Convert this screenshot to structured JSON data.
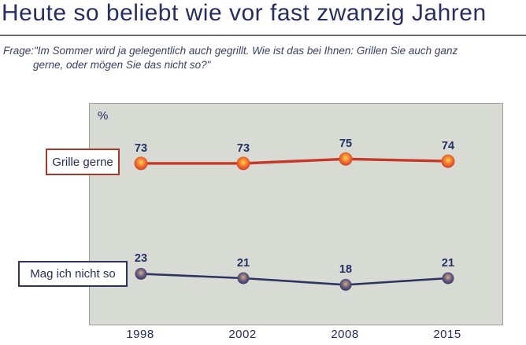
{
  "title": "Heute so beliebt wie vor fast zwanzig Jahren",
  "question": {
    "line1": "Frage:\"Im Sommer wird ja gelegentlich auch gegrillt. Wie ist das bei Ihnen: Grillen Sie auch ganz",
    "line2": "gerne, oder mögen Sie das nicht so?\""
  },
  "chart_data": {
    "type": "line",
    "unit_label": "%",
    "categories": [
      "1998",
      "2002",
      "2008",
      "2015"
    ],
    "series": [
      {
        "name": "Grille gerne",
        "values": [
          73,
          73,
          75,
          74
        ],
        "color": "#c4392a",
        "legend_border": "#a8372a",
        "point_gradient": [
          "#ffd34f",
          "#f4762e",
          "#cf3b22"
        ]
      },
      {
        "name": "Mag ich nicht so",
        "values": [
          23,
          21,
          18,
          21
        ],
        "color": "#2e3460",
        "legend_border": "#2e3460",
        "point_gradient": [
          "#d9b273",
          "#6f6287",
          "#33315c"
        ]
      }
    ],
    "ylim": [
      0,
      100
    ],
    "grid": false,
    "legend_position": "left"
  },
  "colors": {
    "heading_text": "#262e63",
    "body_text": "#3a4168",
    "divider": "#6e6e6e",
    "plot_background": "#d7dbd3",
    "plot_border": "#9aa099",
    "axis_label": "#232b60",
    "value_label": "#233064"
  }
}
